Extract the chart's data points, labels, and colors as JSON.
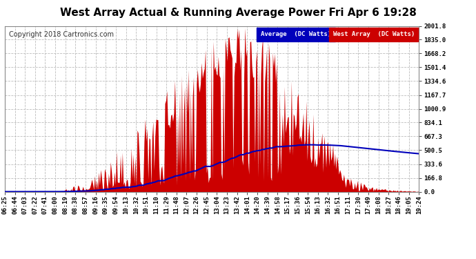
{
  "title": "West Array Actual & Running Average Power Fri Apr 6 19:28",
  "copyright": "Copyright 2018 Cartronics.com",
  "legend_label_avg": "Average  (DC Watts)",
  "legend_label_west": "West Array  (DC Watts)",
  "legend_color_avg": "#0000bb",
  "legend_color_west": "#cc0000",
  "yticks": [
    0.0,
    166.8,
    333.6,
    500.5,
    667.3,
    834.1,
    1000.9,
    1167.7,
    1334.6,
    1501.4,
    1668.2,
    1835.0,
    2001.8
  ],
  "ymax": 2001.8,
  "ymin": 0.0,
  "bg_color": "#ffffff",
  "plot_bg_color": "#ffffff",
  "grid_color": "#bbbbbb",
  "fill_color": "#cc0000",
  "avg_color": "#0000bb",
  "title_fontsize": 11,
  "tick_fontsize": 6.5,
  "copyright_fontsize": 7,
  "x_tick_labels": [
    "06:25",
    "06:44",
    "07:03",
    "07:22",
    "07:41",
    "08:00",
    "08:19",
    "08:38",
    "08:57",
    "09:16",
    "09:35",
    "09:54",
    "10:13",
    "10:32",
    "10:51",
    "11:10",
    "11:29",
    "11:48",
    "12:07",
    "12:26",
    "12:45",
    "13:04",
    "13:23",
    "13:42",
    "14:01",
    "14:20",
    "14:39",
    "14:58",
    "15:17",
    "15:36",
    "15:54",
    "16:13",
    "16:32",
    "16:51",
    "17:11",
    "17:30",
    "17:49",
    "18:08",
    "18:27",
    "18:46",
    "19:05",
    "19:24"
  ]
}
